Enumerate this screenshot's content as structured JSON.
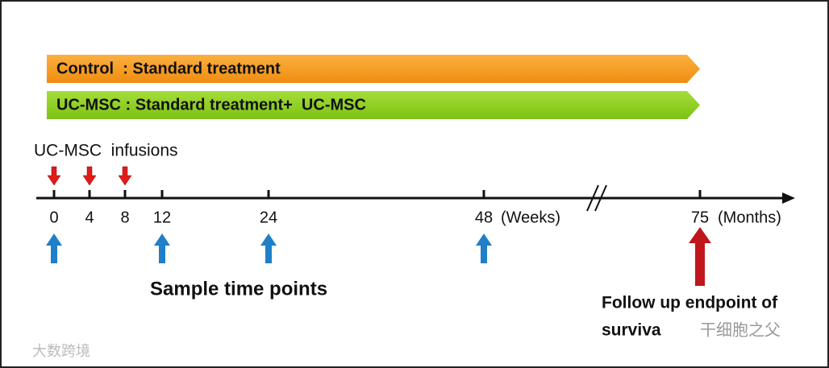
{
  "arms": [
    {
      "label": "Control  : Standard treatment",
      "color": "#f79a1f"
    },
    {
      "label": "UC-MSC : Standard treatment+  UC-MSC",
      "color": "#8ccf1a"
    }
  ],
  "infusions": {
    "title": "UC-MSC  infusions"
  },
  "timeline": {
    "ticks": [
      {
        "label": "0"
      },
      {
        "label": "4"
      },
      {
        "label": "8"
      },
      {
        "label": "12"
      },
      {
        "label": "24"
      },
      {
        "label": "48"
      },
      {
        "label": "75"
      }
    ],
    "weeks_unit": "(Weeks)",
    "months_unit": "(Months)"
  },
  "sample_title": "Sample time points",
  "endpoint": {
    "line1": "Follow up endpoint of",
    "line2": "surviva"
  },
  "watermarks": [
    "大数跨境",
    "干细胞之父"
  ]
}
